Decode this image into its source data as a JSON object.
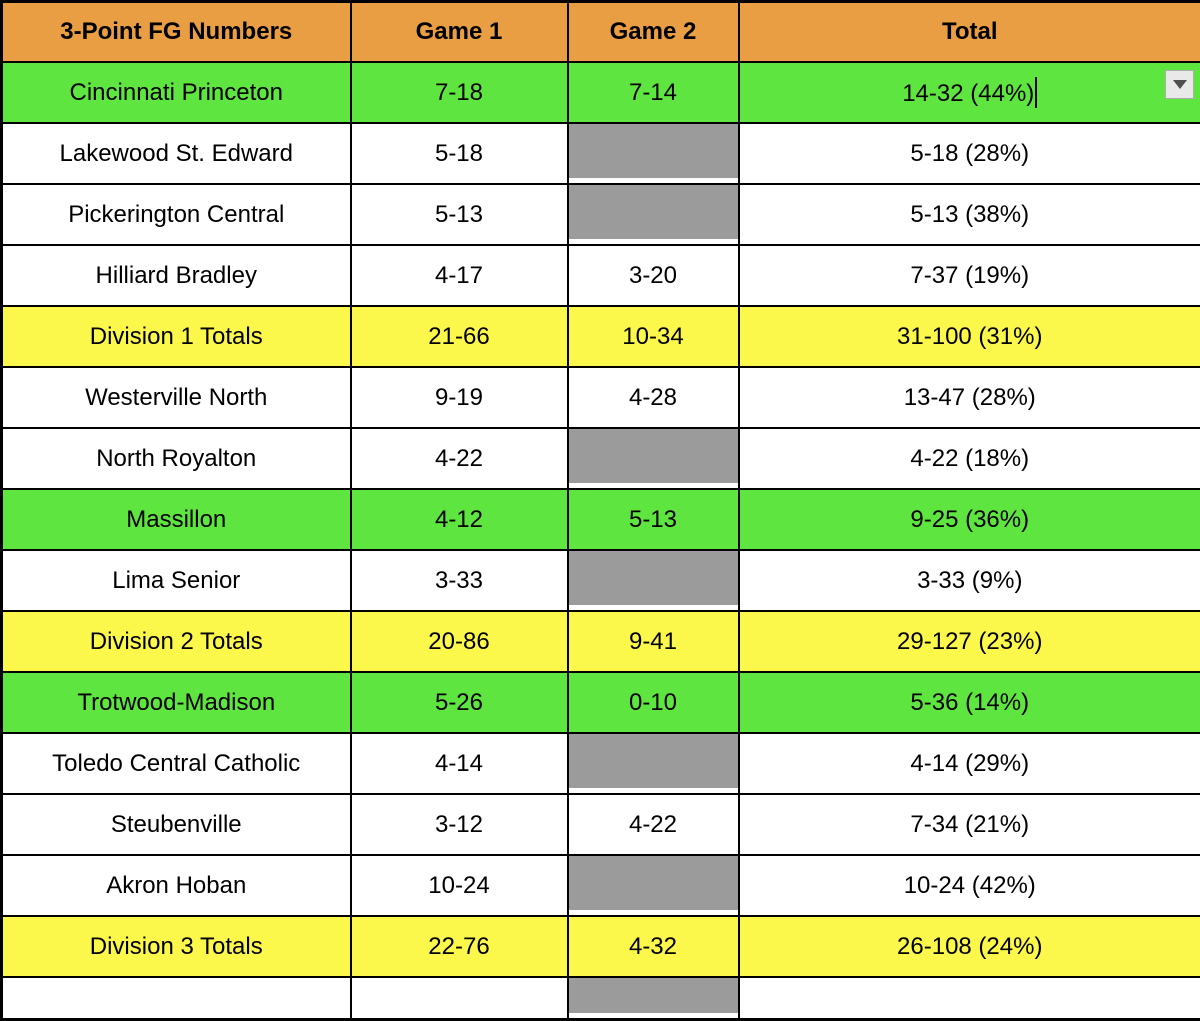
{
  "colors": {
    "orange": "#EA9E44",
    "green": "#5FE53F",
    "yellow": "#FCF84B",
    "gray": "#9B9B9B",
    "border": "#000000"
  },
  "table": {
    "header": {
      "title": "3-Point FG Numbers",
      "game1": "Game 1",
      "game2": "Game 2",
      "total": "Total"
    },
    "rows": [
      {
        "team": "Cincinnati Princeton",
        "game1": "7-18",
        "game2": "7-14",
        "total": "14-32 (44%)",
        "row_color": "green",
        "game2_gray": false
      },
      {
        "team": "Lakewood St. Edward",
        "game1": "5-18",
        "game2": "",
        "total": "5-18 (28%)",
        "row_color": "white",
        "game2_gray": true
      },
      {
        "team": "Pickerington Central",
        "game1": "5-13",
        "game2": "",
        "total": "5-13 (38%)",
        "row_color": "white",
        "game2_gray": true
      },
      {
        "team": "Hilliard Bradley",
        "game1": "4-17",
        "game2": "3-20",
        "total": "7-37 (19%)",
        "row_color": "white",
        "game2_gray": false
      },
      {
        "team": "Division 1 Totals",
        "game1": "21-66",
        "game2": "10-34",
        "total": "31-100 (31%)",
        "row_color": "yellow",
        "game2_gray": false
      },
      {
        "team": "Westerville North",
        "game1": "9-19",
        "game2": "4-28",
        "total": "13-47 (28%)",
        "row_color": "white",
        "game2_gray": false
      },
      {
        "team": "North Royalton",
        "game1": "4-22",
        "game2": "",
        "total": "4-22 (18%)",
        "row_color": "white",
        "game2_gray": true
      },
      {
        "team": "Massillon",
        "game1": "4-12",
        "game2": "5-13",
        "total": "9-25 (36%)",
        "row_color": "green",
        "game2_gray": false
      },
      {
        "team": "Lima Senior",
        "game1": "3-33",
        "game2": "",
        "total": "3-33 (9%)",
        "row_color": "white",
        "game2_gray": true
      },
      {
        "team": "Division 2 Totals",
        "game1": "20-86",
        "game2": "9-41",
        "total": "29-127 (23%)",
        "row_color": "yellow",
        "game2_gray": false
      },
      {
        "team": "Trotwood-Madison",
        "game1": "5-26",
        "game2": "0-10",
        "total": "5-36 (14%)",
        "row_color": "green",
        "game2_gray": false
      },
      {
        "team": "Toledo Central Catholic",
        "game1": "4-14",
        "game2": "",
        "total": "4-14 (29%)",
        "row_color": "white",
        "game2_gray": true
      },
      {
        "team": "Steubenville",
        "game1": "3-12",
        "game2": "4-22",
        "total": "7-34 (21%)",
        "row_color": "white",
        "game2_gray": false
      },
      {
        "team": "Akron Hoban",
        "game1": "10-24",
        "game2": "",
        "total": "10-24 (42%)",
        "row_color": "white",
        "game2_gray": true
      },
      {
        "team": "Division 3 Totals",
        "game1": "22-76",
        "game2": "4-32",
        "total": "26-108 (24%)",
        "row_color": "yellow",
        "game2_gray": false
      }
    ],
    "partial_row_visible": true,
    "partial_row": {
      "game2_gray": true
    }
  },
  "editor": {
    "editing_row_index": 0,
    "cursor_visible": true,
    "dropdown_icon": "down-triangle"
  }
}
